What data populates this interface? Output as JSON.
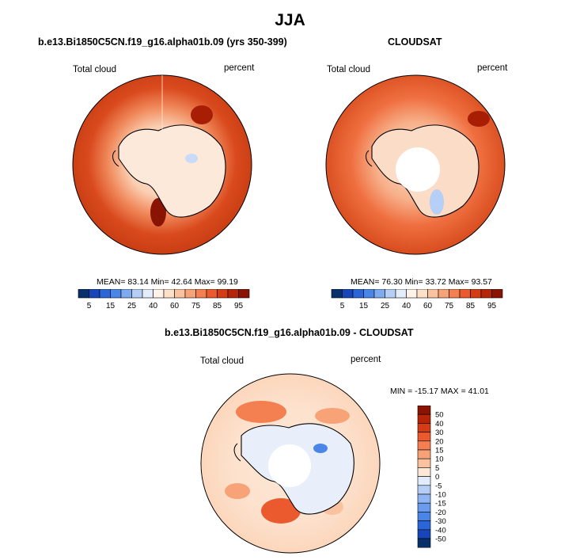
{
  "main_title": "JJA",
  "panels": [
    {
      "title": "b.e13.Bi1850C5CN.f19_g16.alpha01b.09 (yrs 350-399)",
      "left_label": "Total cloud",
      "right_label": "percent",
      "stats": "MEAN= 83.14 Min= 42.64 Max= 99.19",
      "mean": 83.14,
      "min": 42.64,
      "max": 99.19
    },
    {
      "title": "CLOUDSAT",
      "left_label": "Total cloud",
      "right_label": "percent",
      "stats": "MEAN= 76.30 Min= 33.72 Max= 93.57",
      "mean": 76.3,
      "min": 33.72,
      "max": 93.57
    },
    {
      "title": "b.e13.Bi1850C5CN.f19_g16.alpha01b.09 - CLOUDSAT",
      "left_label": "Total cloud",
      "right_label": "percent",
      "stats": "MIN = -15.17 MAX = 41.01",
      "min": -15.17,
      "max": 41.01
    }
  ],
  "colorbar_abs": {
    "labels": [
      "5",
      "15",
      "25",
      "40",
      "60",
      "75",
      "85",
      "95"
    ],
    "colors": [
      "#08306b",
      "#1746b8",
      "#2b66d8",
      "#4a86e8",
      "#7faaf0",
      "#b6cff6",
      "#e2ecfb",
      "#fff2e6",
      "#fde0c8",
      "#fbc2a0",
      "#f8a277",
      "#f47f51",
      "#ea5a2e",
      "#d53c16",
      "#b52508",
      "#8a1404"
    ]
  },
  "colorbar_diff": {
    "labels": [
      "50",
      "40",
      "30",
      "20",
      "15",
      "10",
      "5",
      "0",
      "-5",
      "-10",
      "-15",
      "-20",
      "-30",
      "-40",
      "-50"
    ],
    "colors": [
      "#8a1404",
      "#b52508",
      "#d53c16",
      "#ea5a2e",
      "#f47f51",
      "#f8a277",
      "#fbc2a0",
      "#fde8d8",
      "#e2ecfb",
      "#b6cff6",
      "#8fb6f2",
      "#6a9cee",
      "#4a86e8",
      "#2b66d8",
      "#1746b8",
      "#08306b"
    ]
  }
}
